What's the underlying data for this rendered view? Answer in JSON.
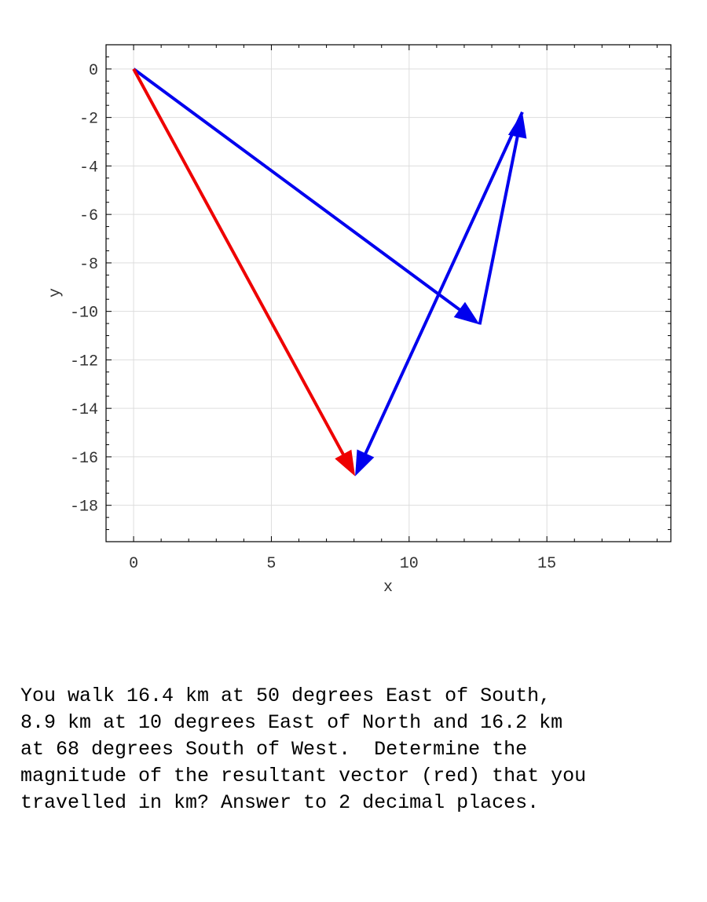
{
  "chart_data": {
    "type": "vector-plot",
    "xlabel": "x",
    "ylabel": "y",
    "xlim": [
      -1,
      19.5
    ],
    "ylim": [
      -19.5,
      1
    ],
    "x_ticks": [
      0,
      5,
      10,
      15
    ],
    "y_ticks": [
      0,
      -2,
      -4,
      -6,
      -8,
      -10,
      -12,
      -14,
      -16,
      -18
    ],
    "grid": true,
    "vectors": [
      {
        "x0": 0,
        "y0": 0,
        "x1": 12.56,
        "y1": -10.54,
        "color": "#0000ee"
      },
      {
        "x0": 12.56,
        "y0": -10.54,
        "x1": 14.11,
        "y1": -1.78,
        "color": "#0000ee"
      },
      {
        "x0": 14.11,
        "y0": -1.78,
        "x1": 8.04,
        "y1": -16.8,
        "color": "#0000ee"
      },
      {
        "x0": 0,
        "y0": 0,
        "x1": 8.04,
        "y1": -16.8,
        "color": "#ee0000"
      }
    ]
  },
  "question": {
    "text": "You walk 16.4 km at 50 degrees East of South,\n8.9 km at 10 degrees East of North and 16.2 km\nat 68 degrees South of West.  Determine the\nmagnitude of the resultant vector (red) that you\ntravelled in km? Answer to 2 decimal places."
  }
}
